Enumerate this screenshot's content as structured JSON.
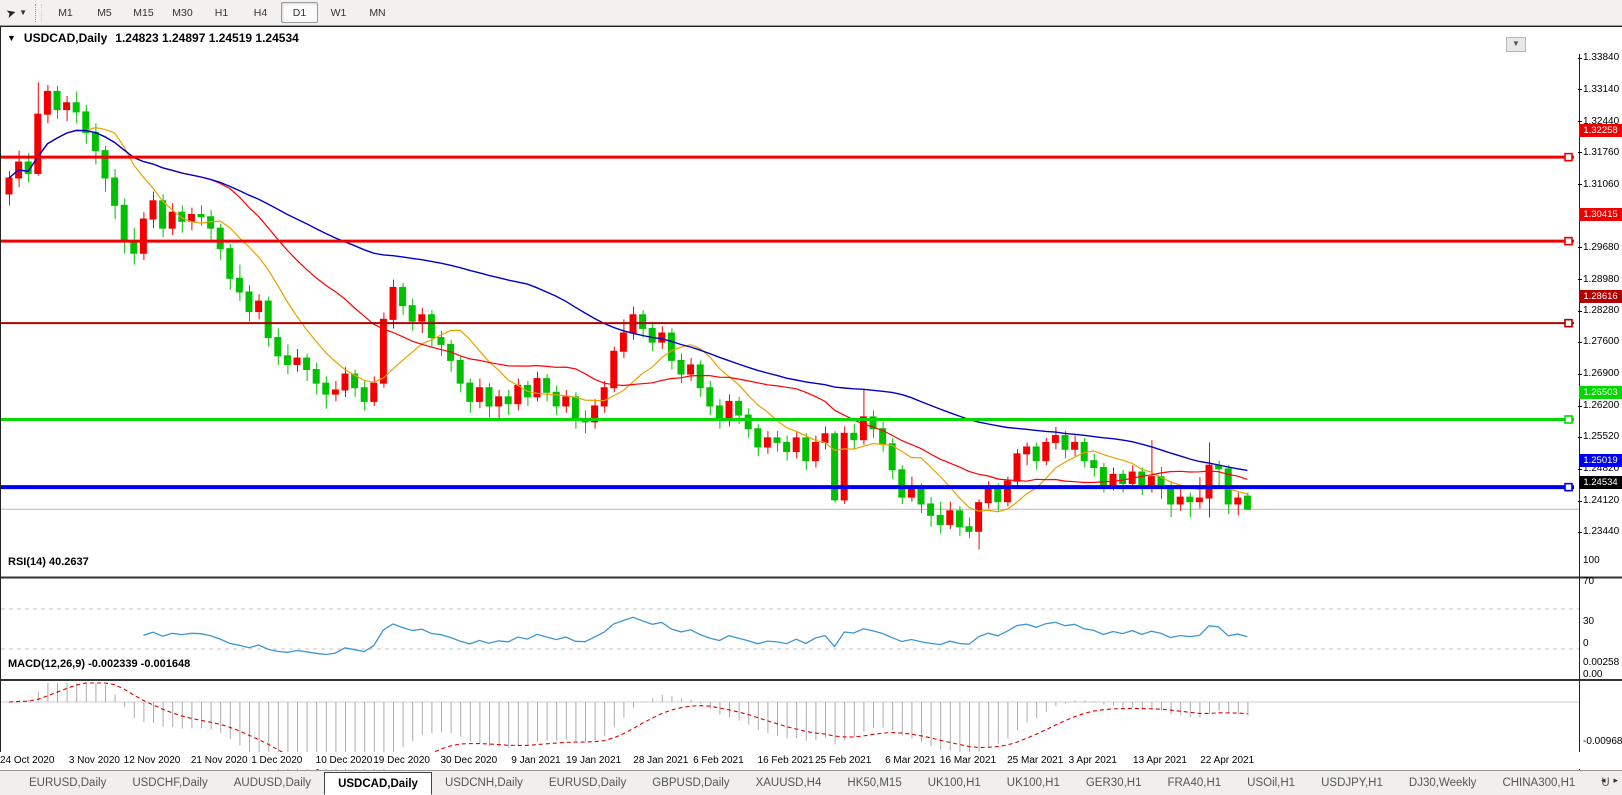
{
  "toolbar": {
    "cursor_tool": "pointer-cursor",
    "timeframes": [
      "M1",
      "M5",
      "M15",
      "M30",
      "H1",
      "H4",
      "D1",
      "W1",
      "MN"
    ],
    "active_timeframe": "D1"
  },
  "chart": {
    "title": "USDCAD,Daily",
    "ohlc_display": "1.24823 1.24897 1.24519 1.24534"
  },
  "chart_data": {
    "type": "candlestick",
    "symbol": "USDCAD",
    "timeframe": "Daily",
    "colors": {
      "bull": "#f20000",
      "bear": "#00c000",
      "ma_fast": "#e8a200",
      "ma_mid": "#ff0000",
      "ma_slow": "#0000cc",
      "rsi_line": "#3e96d2",
      "macd_hist": "#ababab",
      "macd_signal": "#e00000",
      "level_red": "#f00000",
      "level_dark_red": "#b00000",
      "level_green": "#00d800",
      "level_blue": "#0000f0",
      "current_black": "#000000"
    },
    "ma_periods": {
      "fast": 9,
      "mid": 21,
      "slow": 55
    },
    "levels": [
      {
        "price": 1.32258,
        "label": "1.32258",
        "color": "#f00000",
        "width": 3
      },
      {
        "price": 1.30415,
        "label": "1.30415",
        "color": "#f00000",
        "width": 3
      },
      {
        "price": 1.28616,
        "label": "1.28616",
        "color": "#b00000",
        "width": 2
      },
      {
        "price": 1.26503,
        "label": "1.26503",
        "color": "#00d800",
        "width": 3
      },
      {
        "price": 1.25019,
        "label": "1.25019",
        "color": "#0000f0",
        "width": 4
      }
    ],
    "current_price": {
      "value": 1.24534,
      "label": "1.24534"
    },
    "y_ticks": [
      "1.33840",
      "1.33140",
      "1.32440",
      "1.31760",
      "1.31060",
      "1.29680",
      "1.28980",
      "1.28280",
      "1.27600",
      "1.26900",
      "1.26200",
      "1.25520",
      "1.24820",
      "1.24120",
      "1.23440"
    ],
    "x_labels": [
      "24 Oct 2020",
      "3 Nov 2020",
      "12 Nov 2020",
      "21 Nov 2020",
      "1 Dec 2020",
      "10 Dec 2020",
      "19 Dec 2020",
      "30 Dec 2020",
      "9 Jan 2021",
      "19 Jan 2021",
      "28 Jan 2021",
      "6 Feb 2021",
      "16 Feb 2021",
      "25 Feb 2021",
      "6 Mar 2021",
      "16 Mar 2021",
      "25 Mar 2021",
      "3 Apr 2021",
      "13 Apr 2021",
      "22 Apr 2021"
    ],
    "x_label_bars": [
      2,
      9,
      15,
      22,
      28,
      35,
      41,
      48,
      55,
      61,
      68,
      74,
      81,
      87,
      94,
      100,
      107,
      113,
      120,
      127
    ],
    "indicators": {
      "rsi": {
        "label": "RSI(14) 40.2637",
        "period": 14,
        "value": 40.2637,
        "axis": [
          "100",
          "70",
          "30",
          "0"
        ],
        "guides": [
          70,
          30
        ]
      },
      "macd": {
        "label": "MACD(12,26,9) -0.002339 -0.001648",
        "values": [
          -0.002339,
          -0.001648
        ],
        "axis_top": "0.00258",
        "axis_zero": "0.00",
        "axis_bottom": "-0.009687"
      }
    },
    "bars": [
      [
        1.3145,
        1.3195,
        1.312,
        1.318
      ],
      [
        1.318,
        1.324,
        1.316,
        1.3215
      ],
      [
        1.3215,
        1.3235,
        1.317,
        1.319
      ],
      [
        1.319,
        1.339,
        1.3185,
        1.332
      ],
      [
        1.332,
        1.3384,
        1.33,
        1.337
      ],
      [
        1.337,
        1.3382,
        1.331,
        1.333
      ],
      [
        1.333,
        1.336,
        1.3305,
        1.3345
      ],
      [
        1.3345,
        1.337,
        1.33,
        1.3325
      ],
      [
        1.3325,
        1.334,
        1.3255,
        1.328
      ],
      [
        1.328,
        1.33,
        1.321,
        1.324
      ],
      [
        1.324,
        1.325,
        1.315,
        1.318
      ],
      [
        1.318,
        1.32,
        1.309,
        1.312
      ],
      [
        1.312,
        1.3135,
        1.3015,
        1.304
      ],
      [
        1.304,
        1.307,
        1.299,
        1.3015
      ],
      [
        1.3015,
        1.3105,
        1.3,
        1.309
      ],
      [
        1.309,
        1.315,
        1.307,
        1.313
      ],
      [
        1.313,
        1.3145,
        1.305,
        1.307
      ],
      [
        1.307,
        1.3125,
        1.3055,
        1.3105
      ],
      [
        1.3105,
        1.312,
        1.306,
        1.3085
      ],
      [
        1.3085,
        1.3115,
        1.3065,
        1.31
      ],
      [
        1.31,
        1.312,
        1.3075,
        1.3095
      ],
      [
        1.3095,
        1.311,
        1.3045,
        1.307
      ],
      [
        1.307,
        1.308,
        1.3,
        1.3025
      ],
      [
        1.3025,
        1.3035,
        1.2935,
        1.296
      ],
      [
        1.296,
        1.299,
        1.291,
        1.293
      ],
      [
        1.293,
        1.2945,
        1.2865,
        1.2887
      ],
      [
        1.2887,
        1.2925,
        1.287,
        1.291
      ],
      [
        1.291,
        1.292,
        1.281,
        1.283
      ],
      [
        1.283,
        1.285,
        1.277,
        1.279
      ],
      [
        1.279,
        1.2815,
        1.275,
        1.2771
      ],
      [
        1.2771,
        1.2805,
        1.2755,
        1.2785
      ],
      [
        1.2785,
        1.2795,
        1.2735,
        1.276
      ],
      [
        1.276,
        1.2775,
        1.2705,
        1.273
      ],
      [
        1.273,
        1.2745,
        1.2674,
        1.2706
      ],
      [
        1.2706,
        1.2735,
        1.269,
        1.2715
      ],
      [
        1.2715,
        1.2765,
        1.27,
        1.275
      ],
      [
        1.275,
        1.276,
        1.27,
        1.272
      ],
      [
        1.272,
        1.2735,
        1.267,
        1.269
      ],
      [
        1.269,
        1.2745,
        1.268,
        1.273
      ],
      [
        1.273,
        1.2885,
        1.272,
        1.287
      ],
      [
        1.287,
        1.2957,
        1.285,
        1.294
      ],
      [
        1.294,
        1.295,
        1.288,
        1.29
      ],
      [
        1.29,
        1.2915,
        1.2845,
        1.2866
      ],
      [
        1.2866,
        1.2895,
        1.284,
        1.288
      ],
      [
        1.288,
        1.289,
        1.281,
        1.283
      ],
      [
        1.283,
        1.2845,
        1.279,
        1.2815
      ],
      [
        1.2815,
        1.2825,
        1.2755,
        1.278
      ],
      [
        1.278,
        1.279,
        1.271,
        1.273
      ],
      [
        1.273,
        1.274,
        1.2665,
        1.269
      ],
      [
        1.269,
        1.274,
        1.2675,
        1.272
      ],
      [
        1.272,
        1.273,
        1.2655,
        1.268
      ],
      [
        1.268,
        1.2715,
        1.265,
        1.27
      ],
      [
        1.27,
        1.2715,
        1.266,
        1.2685
      ],
      [
        1.2685,
        1.274,
        1.267,
        1.2725
      ],
      [
        1.2725,
        1.2735,
        1.268,
        1.27
      ],
      [
        1.27,
        1.2755,
        1.269,
        1.274
      ],
      [
        1.274,
        1.275,
        1.269,
        1.271
      ],
      [
        1.271,
        1.2725,
        1.266,
        1.268
      ],
      [
        1.268,
        1.2715,
        1.2665,
        1.27
      ],
      [
        1.27,
        1.271,
        1.263,
        1.265
      ],
      [
        1.265,
        1.267,
        1.262,
        1.2645
      ],
      [
        1.2645,
        1.2695,
        1.263,
        1.268
      ],
      [
        1.268,
        1.2735,
        1.2665,
        1.272
      ],
      [
        1.272,
        1.281,
        1.271,
        1.28
      ],
      [
        1.28,
        1.287,
        1.2785,
        1.284
      ],
      [
        1.284,
        1.2898,
        1.2825,
        1.288
      ],
      [
        1.288,
        1.289,
        1.283,
        1.285
      ],
      [
        1.285,
        1.2865,
        1.28,
        1.282
      ],
      [
        1.282,
        1.2855,
        1.2805,
        1.284
      ],
      [
        1.284,
        1.285,
        1.276,
        1.278
      ],
      [
        1.278,
        1.2795,
        1.273,
        1.275
      ],
      [
        1.275,
        1.2785,
        1.2735,
        1.277
      ],
      [
        1.277,
        1.278,
        1.27,
        1.272
      ],
      [
        1.272,
        1.2735,
        1.266,
        1.268
      ],
      [
        1.268,
        1.2695,
        1.263,
        1.265
      ],
      [
        1.265,
        1.2705,
        1.2635,
        1.269
      ],
      [
        1.269,
        1.27,
        1.264,
        1.266
      ],
      [
        1.266,
        1.2675,
        1.261,
        1.263
      ],
      [
        1.263,
        1.264,
        1.257,
        1.259
      ],
      [
        1.259,
        1.2625,
        1.2575,
        1.261
      ],
      [
        1.261,
        1.2625,
        1.258,
        1.26
      ],
      [
        1.26,
        1.2615,
        1.256,
        1.258
      ],
      [
        1.258,
        1.2625,
        1.2565,
        1.261
      ],
      [
        1.261,
        1.262,
        1.254,
        1.256
      ],
      [
        1.256,
        1.2615,
        1.2545,
        1.26
      ],
      [
        1.26,
        1.2635,
        1.2585,
        1.2619
      ],
      [
        1.2619,
        1.2625,
        1.2468,
        1.2474
      ],
      [
        1.2474,
        1.2635,
        1.2465,
        1.262
      ],
      [
        1.262,
        1.264,
        1.2585,
        1.2606
      ],
      [
        1.2606,
        1.2715,
        1.2595,
        1.2656
      ],
      [
        1.2656,
        1.267,
        1.261,
        1.263
      ],
      [
        1.263,
        1.2645,
        1.258,
        1.2597
      ],
      [
        1.2597,
        1.261,
        1.252,
        1.254
      ],
      [
        1.254,
        1.255,
        1.2465,
        1.248
      ],
      [
        1.248,
        1.2525,
        1.247,
        1.25
      ],
      [
        1.25,
        1.251,
        1.2445,
        1.2465
      ],
      [
        1.2465,
        1.248,
        1.2415,
        1.244
      ],
      [
        1.244,
        1.247,
        1.24,
        1.242
      ],
      [
        1.242,
        1.247,
        1.241,
        1.245
      ],
      [
        1.245,
        1.246,
        1.2395,
        1.2415
      ],
      [
        1.2415,
        1.2435,
        1.239,
        1.2405
      ],
      [
        1.2405,
        1.2475,
        1.2365,
        1.2468
      ],
      [
        1.2468,
        1.2515,
        1.2455,
        1.25
      ],
      [
        1.25,
        1.251,
        1.245,
        1.247
      ],
      [
        1.247,
        1.2525,
        1.246,
        1.2515
      ],
      [
        1.2515,
        1.2585,
        1.2505,
        1.2575
      ],
      [
        1.2575,
        1.26,
        1.255,
        1.259
      ],
      [
        1.259,
        1.26,
        1.254,
        1.256
      ],
      [
        1.256,
        1.261,
        1.255,
        1.26
      ],
      [
        1.26,
        1.2634,
        1.2585,
        1.2615
      ],
      [
        1.2615,
        1.2625,
        1.2565,
        1.2585
      ],
      [
        1.2585,
        1.2615,
        1.257,
        1.26
      ],
      [
        1.26,
        1.261,
        1.2545,
        1.256
      ],
      [
        1.256,
        1.2575,
        1.2525,
        1.2545
      ],
      [
        1.2545,
        1.2555,
        1.249,
        1.2505
      ],
      [
        1.2505,
        1.2545,
        1.2495,
        1.253
      ],
      [
        1.253,
        1.254,
        1.249,
        1.251
      ],
      [
        1.251,
        1.255,
        1.25,
        1.2535
      ],
      [
        1.2535,
        1.2545,
        1.2485,
        1.25
      ],
      [
        1.25,
        1.2605,
        1.249,
        1.2525
      ],
      [
        1.2525,
        1.2546,
        1.2476,
        1.2505
      ],
      [
        1.2505,
        1.2515,
        1.2436,
        1.2465
      ],
      [
        1.2465,
        1.25,
        1.245,
        1.248
      ],
      [
        1.248,
        1.249,
        1.2436,
        1.247
      ],
      [
        1.247,
        1.2524,
        1.2455,
        1.2478
      ],
      [
        1.2478,
        1.26,
        1.2436,
        1.255
      ],
      [
        1.255,
        1.256,
        1.2505,
        1.2542
      ],
      [
        1.2542,
        1.255,
        1.2443,
        1.2465
      ],
      [
        1.2465,
        1.249,
        1.244,
        1.2478
      ],
      [
        1.24823,
        1.24897,
        1.24519,
        1.24534
      ]
    ]
  },
  "tabs": {
    "items": [
      "EURUSD,Daily",
      "USDCHF,Daily",
      "AUDUSD,Daily",
      "USDCAD,Daily",
      "USDCNH,Daily",
      "EURUSD,Daily",
      "GBPUSD,Daily",
      "XAUUSD,H4",
      "HK50,M15",
      "UK100,H1",
      "UK100,H1",
      "GER30,H1",
      "FRA40,H1",
      "USOil,H1",
      "USDJPY,H1",
      "DJ30,Weekly",
      "CHINA300,H1",
      "U"
    ],
    "active_index": 3,
    "scroll_left": "◂",
    "scroll_right": "▸"
  }
}
